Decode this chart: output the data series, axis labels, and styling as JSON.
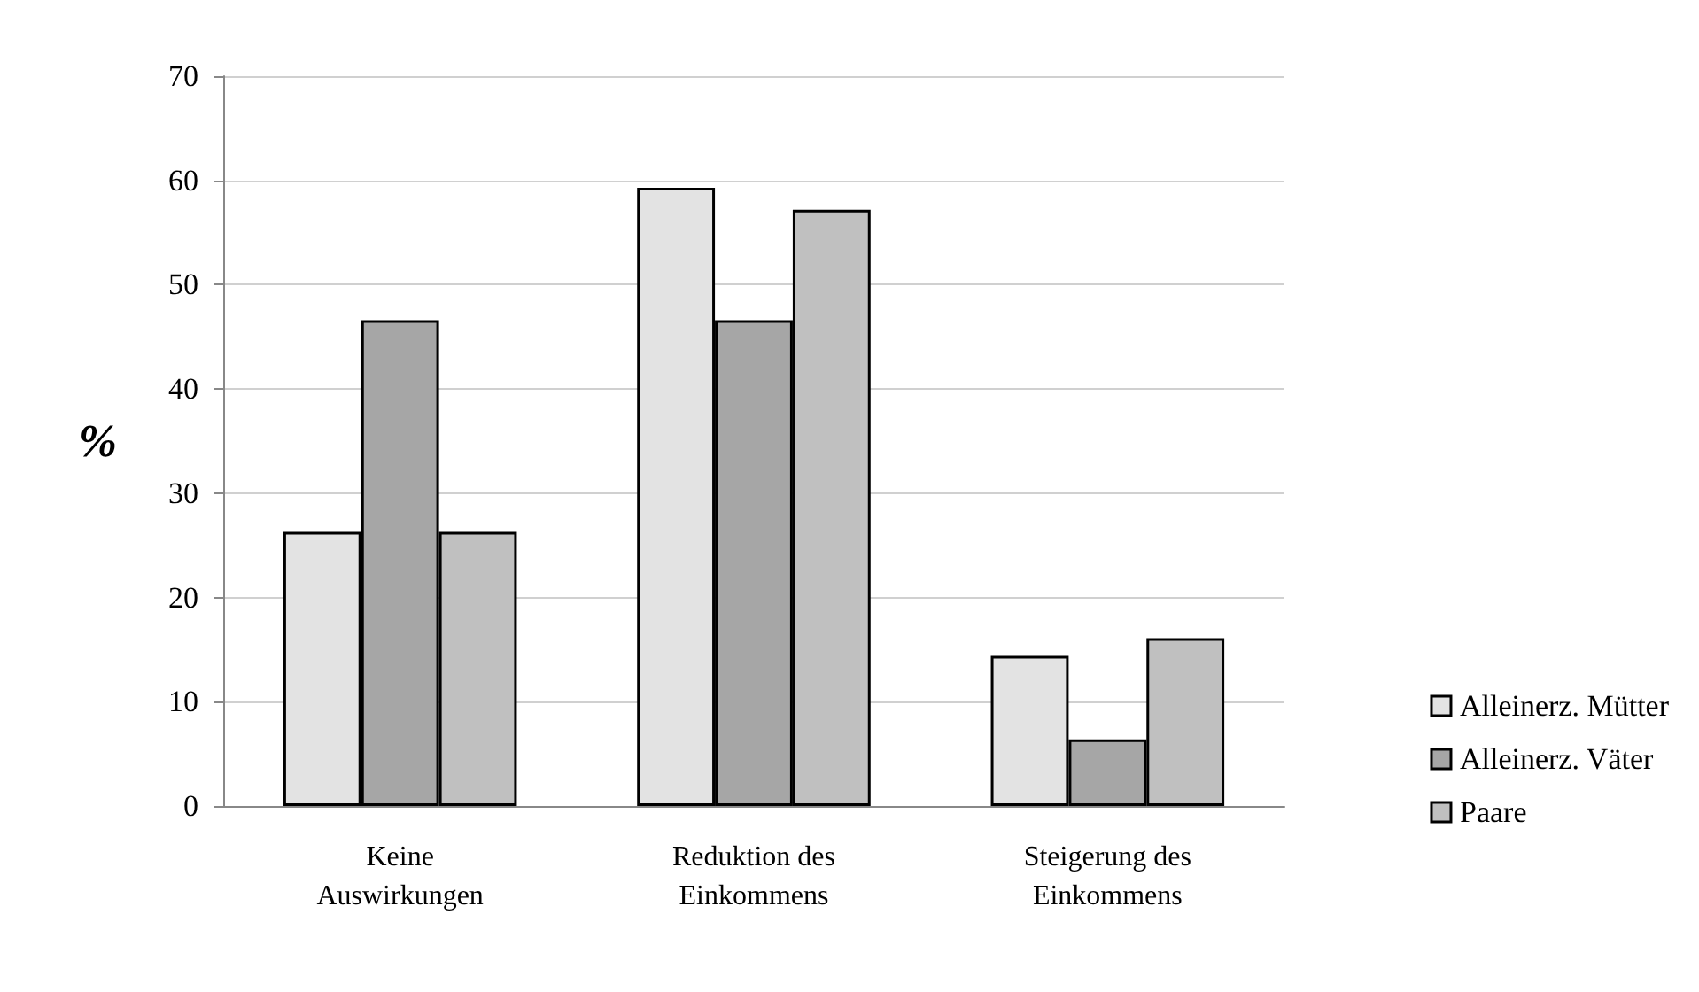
{
  "chart_data": {
    "type": "bar",
    "ylabel": "%",
    "categories": [
      "Keine Auswirkungen",
      "Reduktion des Einkommens",
      "Steigerung des Einkommens"
    ],
    "series": [
      {
        "name": "Alleinerz. Mütter",
        "color": "#e3e3e3",
        "values": [
          26.3,
          59.3,
          14.4
        ]
      },
      {
        "name": "Alleinerz. Väter",
        "color": "#a6a6a6",
        "values": [
          46.6,
          46.6,
          6.4
        ]
      },
      {
        "name": "Paare",
        "color": "#c0c0c0",
        "values": [
          26.3,
          57.2,
          16.1
        ]
      }
    ],
    "ylim": [
      0,
      70
    ],
    "yticks": [
      0,
      10,
      20,
      30,
      40,
      50,
      60,
      70
    ],
    "grid": "y",
    "legend": "right"
  }
}
